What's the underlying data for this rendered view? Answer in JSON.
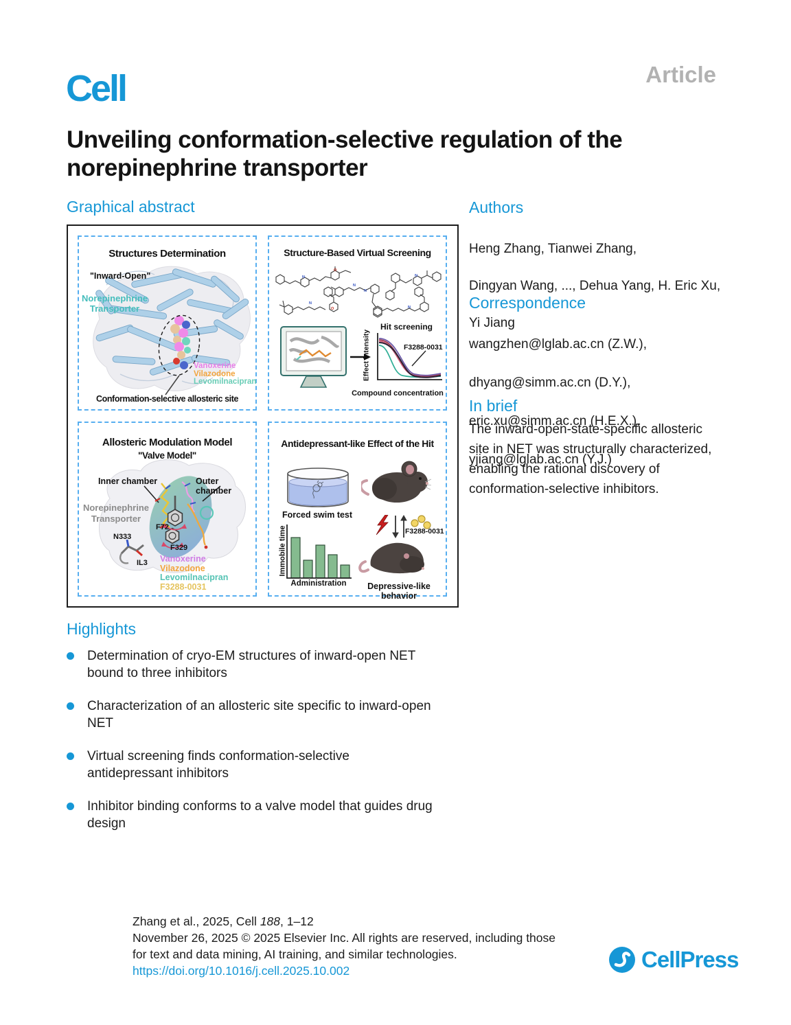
{
  "page": {
    "journal_logo": "Cell",
    "article_label": "Article",
    "title": "Unveiling conformation-selective regulation of the\nnorepinephrine transporter"
  },
  "graphical_abstract": {
    "heading": "Graphical abstract",
    "panel_structures": {
      "title": "Structures Determination",
      "state_label": "\"Inward-Open\"",
      "protein_line1": "Norepinephrine",
      "protein_line2": "Transporter",
      "ligands": [
        {
          "name": "Vanoxerine",
          "color": "#e97ee9"
        },
        {
          "name": "Vilazodone",
          "color": "#f2a43c"
        },
        {
          "name": "Levomilnacipran",
          "color": "#69cdb6"
        }
      ],
      "site_label": "Conformation-selective allosteric site"
    },
    "panel_screening": {
      "title": "Structure-Based Virtual Screening",
      "plot_title": "Hit screening",
      "plot_ylabel": "Effect intensity",
      "plot_xlabel": "Compound concentration",
      "hit_label": "F3288-0031"
    },
    "panel_model": {
      "title": "Allosteric Modulation Model",
      "subtitle": "\"Valve Model\"",
      "inner_chamber": "Inner chamber",
      "outer_chamber": "Outer chamber",
      "protein_line1": "Norepinephrine",
      "protein_line2": "Transporter",
      "residue_n333": "N333",
      "residue_il3": "IL3",
      "residue_f72": "F72",
      "residue_f329": "F329",
      "ligands": [
        {
          "name": "Vanoxerine",
          "color": "#cf7ce4"
        },
        {
          "name": "Vilazodone",
          "color": "#f2a43c"
        },
        {
          "name": "Levomilnacipran",
          "color": "#55c3b4"
        },
        {
          "name": "F3288-0031",
          "color": "#e5c45f"
        }
      ]
    },
    "panel_effect": {
      "title": "Antidepressant-like Effect of the Hit",
      "swim_label": "Forced swim test",
      "hit_label": "F3288-0031",
      "behavior_label": "Depressive-like behavior",
      "bar_chart": {
        "type": "bar",
        "ylabel": "Immobile time",
        "xlabel": "Administration",
        "values": [
          0.95,
          0.42,
          0.78,
          0.55,
          0.3
        ]
      }
    }
  },
  "authors": {
    "heading": "Authors",
    "lines": [
      "Heng Zhang, Tianwei Zhang,",
      "Dingyan Wang, ..., Dehua Yang, H. Eric Xu,",
      "Yi Jiang"
    ]
  },
  "correspondence": {
    "heading": "Correspondence",
    "lines": [
      "wangzhen@lglab.ac.cn (Z.W.),",
      "dhyang@simm.ac.cn (D.Y.),",
      "eric.xu@simm.ac.cn (H.E.X.),",
      "yjiang@lglab.ac.cn (Y.J.)"
    ]
  },
  "in_brief": {
    "heading": "In brief",
    "text": "The inward-open-state-specific allosteric\nsite in NET was structurally characterized,\nenabling the rational discovery of\nconformation-selective inhibitors."
  },
  "highlights": {
    "heading": "Highlights",
    "items": [
      "Determination of cryo-EM structures of inward-open NET\nbound to three inhibitors",
      "Characterization of an allosteric site specific to inward-open\nNET",
      "Virtual screening finds conformation-selective\nantidepressant inhibitors",
      "Inhibitor binding conforms to a valve model that guides drug\ndesign"
    ]
  },
  "footer": {
    "citation_prefix": "Zhang et al., 2025, Cell ",
    "citation_volume": "188",
    "citation_suffix": ", 1–12",
    "rights_line1": "November 26, 2025 © 2025 Elsevier Inc. All rights are reserved, including those",
    "rights_line2": "for text and data mining, AI training, and similar technologies.",
    "doi": "https://doi.org/10.1016/j.cell.2025.10.002",
    "publisher": "CellPress"
  },
  "colors": {
    "brand_blue": "#1697d6",
    "article_gray": "#b2b2b2",
    "panel_border": "#56aef0",
    "bar_green": "#85bb8f"
  }
}
